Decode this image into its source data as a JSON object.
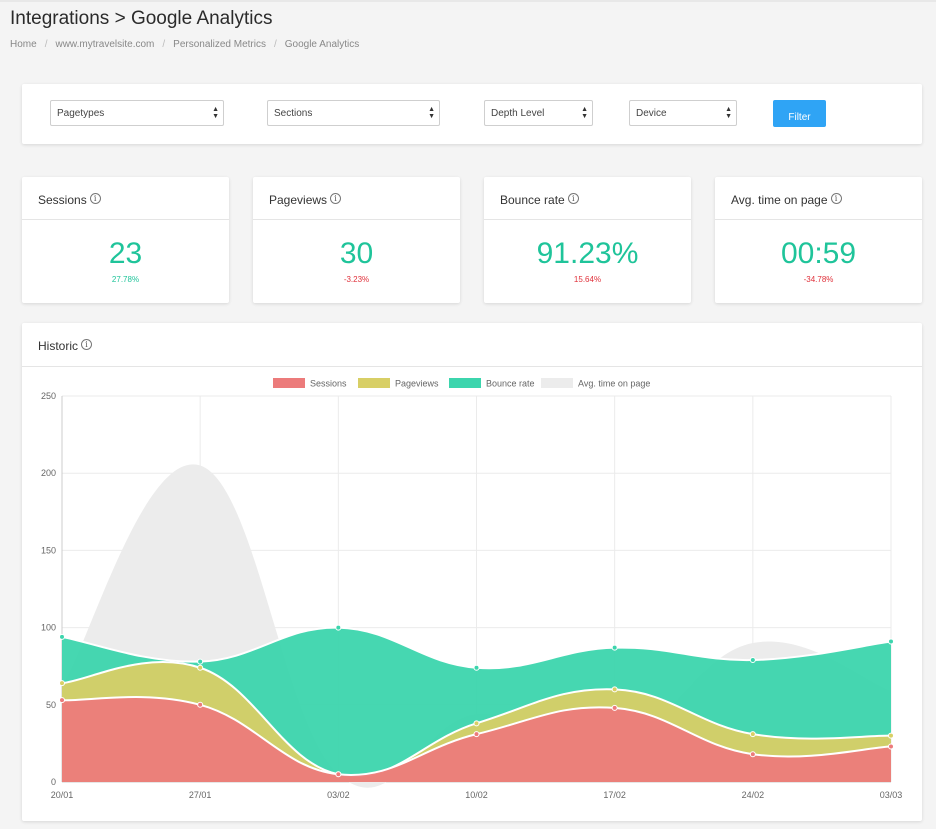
{
  "header": {
    "title": "Integrations > Google Analytics"
  },
  "breadcrumb": [
    "Home",
    "www.mytravelsite.com",
    "Personalized Metrics",
    "Google Analytics"
  ],
  "filters": {
    "pagetypes": "Pagetypes",
    "sections": "Sections",
    "depth": "Depth Level",
    "device": "Device",
    "button": "Filter"
  },
  "kpis": [
    {
      "label": "Sessions",
      "value": "23",
      "change": "27.78%",
      "trend": "up"
    },
    {
      "label": "Pageviews",
      "value": "30",
      "change": "-3.23%",
      "trend": "down"
    },
    {
      "label": "Bounce rate",
      "value": "91.23%",
      "change": "15.64%",
      "trend": "down"
    },
    {
      "label": "Avg. time on page",
      "value": "00:59",
      "change": "-34.78%",
      "trend": "down"
    }
  ],
  "historic": {
    "title": "Historic"
  },
  "colors": {
    "accent": "#1fc49a",
    "negative": "#e0303a",
    "button": "#2fa4f5",
    "sessions": "#ec7b7b",
    "pageviews": "#d8cf66",
    "bounce": "#3cd5ad",
    "avgtime": "#ececec"
  },
  "icons": {
    "info": "info-circle-icon",
    "select": "updown-arrows-icon"
  },
  "chart_data": {
    "type": "area",
    "x": [
      "20/01",
      "27/01",
      "03/02",
      "10/02",
      "17/02",
      "24/02",
      "03/03"
    ],
    "ylim": [
      0,
      250
    ],
    "yticks": [
      0,
      50,
      100,
      150,
      200,
      250
    ],
    "legend_position": "top",
    "grid": true,
    "series": [
      {
        "name": "Sessions",
        "values": [
          53,
          50,
          5,
          31,
          48,
          18,
          23
        ]
      },
      {
        "name": "Pageviews",
        "values": [
          64,
          74,
          5,
          38,
          60,
          31,
          30
        ]
      },
      {
        "name": "Bounce rate",
        "values": [
          94,
          78,
          100,
          74,
          87,
          79,
          91
        ]
      },
      {
        "name": "Avg. time on page",
        "values": [
          62,
          205,
          5,
          44,
          24,
          90,
          59
        ]
      }
    ]
  }
}
